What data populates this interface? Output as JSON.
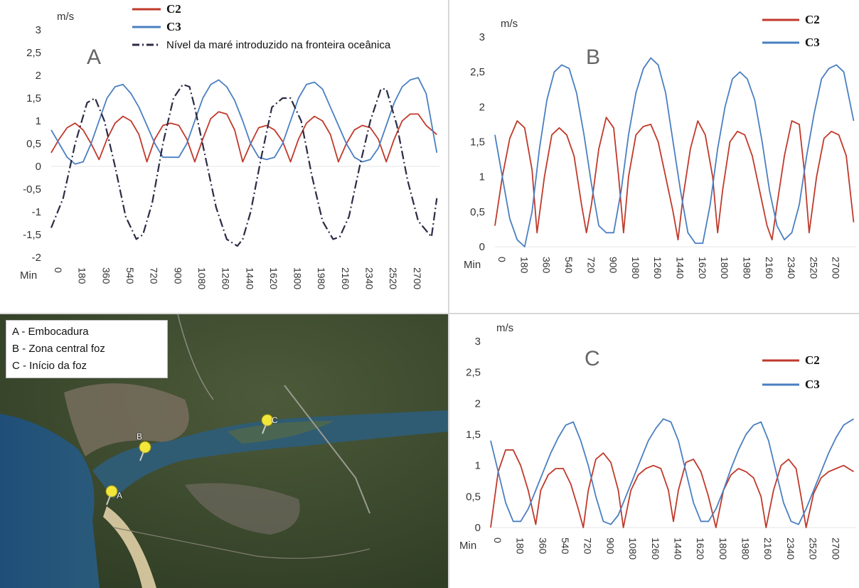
{
  "chart_data": [
    {
      "panel": "A",
      "type": "line",
      "unit_label": "m/s",
      "x_axis_label": "Min",
      "ylim": [
        -2,
        3
      ],
      "yticks": [
        "3",
        "2,5",
        "2",
        "1,5",
        "1",
        "0,5",
        "0",
        "-0,5",
        "-1",
        "-1,5",
        "-2"
      ],
      "xticks": [
        "0",
        "180",
        "360",
        "540",
        "720",
        "900",
        "1080",
        "1260",
        "1440",
        "1620",
        "1800",
        "1980",
        "2160",
        "2340",
        "2520",
        "2700"
      ],
      "xmax": 2920,
      "legend": [
        {
          "name": "C2",
          "color": "#c0392b"
        },
        {
          "name": "C3",
          "color": "#4a7fc1"
        },
        {
          "name": "Nível da maré introduzido na fronteira oceânica",
          "color": "#2b2b45"
        }
      ],
      "series": [
        {
          "name": "C2",
          "x": [
            0,
            60,
            120,
            180,
            240,
            300,
            360,
            420,
            480,
            540,
            600,
            660,
            720,
            780,
            840,
            900,
            960,
            1020,
            1080,
            1140,
            1200,
            1260,
            1320,
            1380,
            1440,
            1500,
            1560,
            1620,
            1680,
            1740,
            1800,
            1860,
            1920,
            1980,
            2040,
            2100,
            2160,
            2220,
            2280,
            2340,
            2400,
            2460,
            2520,
            2580,
            2640,
            2700,
            2760,
            2820,
            2900
          ],
          "y": [
            0.3,
            0.6,
            0.85,
            0.95,
            0.8,
            0.5,
            0.15,
            0.6,
            0.95,
            1.1,
            1.0,
            0.7,
            0.1,
            0.6,
            0.9,
            0.95,
            0.9,
            0.6,
            0.1,
            0.6,
            1.05,
            1.2,
            1.15,
            0.8,
            0.1,
            0.5,
            0.85,
            0.9,
            0.8,
            0.55,
            0.1,
            0.6,
            0.95,
            1.1,
            1.0,
            0.7,
            0.1,
            0.5,
            0.8,
            0.9,
            0.85,
            0.6,
            0.1,
            0.6,
            1.0,
            1.15,
            1.15,
            0.9,
            0.7
          ]
        },
        {
          "name": "C3",
          "x": [
            0,
            60,
            120,
            180,
            240,
            300,
            360,
            420,
            480,
            540,
            600,
            660,
            720,
            780,
            840,
            900,
            960,
            1020,
            1080,
            1140,
            1200,
            1260,
            1320,
            1380,
            1440,
            1500,
            1560,
            1620,
            1680,
            1740,
            1800,
            1860,
            1920,
            1980,
            2040,
            2100,
            2160,
            2220,
            2280,
            2340,
            2400,
            2460,
            2520,
            2580,
            2640,
            2700,
            2760,
            2820,
            2900
          ],
          "y": [
            0.8,
            0.5,
            0.2,
            0.05,
            0.1,
            0.5,
            1.0,
            1.5,
            1.75,
            1.8,
            1.6,
            1.3,
            0.9,
            0.5,
            0.2,
            0.2,
            0.2,
            0.5,
            1.0,
            1.5,
            1.8,
            1.9,
            1.75,
            1.45,
            1.0,
            0.5,
            0.2,
            0.15,
            0.2,
            0.5,
            1.0,
            1.5,
            1.8,
            1.85,
            1.7,
            1.3,
            0.9,
            0.5,
            0.2,
            0.1,
            0.15,
            0.4,
            0.9,
            1.4,
            1.75,
            1.9,
            1.95,
            1.6,
            0.3
          ]
        },
        {
          "name": "Nível da maré introduzido na fronteira oceânica",
          "dash": true,
          "x": [
            0,
            90,
            180,
            270,
            330,
            400,
            480,
            560,
            640,
            690,
            760,
            840,
            920,
            990,
            1040,
            1080,
            1160,
            1240,
            1320,
            1400,
            1440,
            1500,
            1580,
            1660,
            1740,
            1800,
            1880,
            1960,
            2040,
            2120,
            2170,
            2240,
            2320,
            2400,
            2480,
            2520,
            2600,
            2680,
            2760,
            2860,
            2900
          ],
          "y": [
            -1.35,
            -0.7,
            0.5,
            1.4,
            1.5,
            1.0,
            0.0,
            -1.1,
            -1.6,
            -1.5,
            -0.8,
            0.5,
            1.5,
            1.8,
            1.75,
            1.3,
            0.2,
            -0.9,
            -1.6,
            -1.75,
            -1.6,
            -1.0,
            0.2,
            1.3,
            1.5,
            1.5,
            1.0,
            -0.2,
            -1.2,
            -1.6,
            -1.55,
            -1.1,
            0.0,
            1.0,
            1.7,
            1.7,
            0.9,
            -0.3,
            -1.2,
            -1.55,
            -0.7
          ]
        }
      ]
    },
    {
      "panel": "B",
      "type": "line",
      "unit_label": "m/s",
      "x_axis_label": "Min",
      "ylim": [
        0,
        3
      ],
      "yticks": [
        "3",
        "2,5",
        "2",
        "1,5",
        "1",
        "0,5",
        "0"
      ],
      "xticks": [
        "0",
        "180",
        "360",
        "540",
        "720",
        "900",
        "1080",
        "1260",
        "1440",
        "1620",
        "1800",
        "1980",
        "2160",
        "2340",
        "2520",
        "2700"
      ],
      "xmax": 2920,
      "legend": [
        {
          "name": "C2",
          "color": "#c0392b"
        },
        {
          "name": "C3",
          "color": "#4a7fc1"
        }
      ],
      "series": [
        {
          "name": "C2",
          "x": [
            0,
            60,
            120,
            180,
            240,
            300,
            340,
            400,
            460,
            520,
            580,
            640,
            700,
            740,
            780,
            840,
            900,
            960,
            1000,
            1040,
            1080,
            1140,
            1200,
            1260,
            1320,
            1380,
            1440,
            1480,
            1520,
            1580,
            1640,
            1700,
            1760,
            1800,
            1840,
            1900,
            1960,
            2020,
            2080,
            2140,
            2200,
            2240,
            2280,
            2340,
            2400,
            2460,
            2500,
            2540,
            2600,
            2660,
            2720,
            2780,
            2840,
            2900
          ],
          "y": [
            0.3,
            1.0,
            1.55,
            1.8,
            1.7,
            1.1,
            0.2,
            1.0,
            1.6,
            1.7,
            1.6,
            1.3,
            0.6,
            0.2,
            0.6,
            1.4,
            1.85,
            1.7,
            1.0,
            0.2,
            1.0,
            1.6,
            1.72,
            1.75,
            1.5,
            1.0,
            0.5,
            0.1,
            0.7,
            1.4,
            1.8,
            1.6,
            1.0,
            0.2,
            0.8,
            1.5,
            1.65,
            1.6,
            1.3,
            0.8,
            0.3,
            0.1,
            0.6,
            1.3,
            1.8,
            1.75,
            1.1,
            0.2,
            1.0,
            1.55,
            1.65,
            1.6,
            1.3,
            0.35
          ]
        },
        {
          "name": "C3",
          "x": [
            0,
            60,
            120,
            180,
            240,
            300,
            360,
            420,
            480,
            540,
            600,
            660,
            720,
            780,
            840,
            900,
            960,
            1020,
            1080,
            1140,
            1200,
            1260,
            1320,
            1380,
            1440,
            1500,
            1560,
            1620,
            1680,
            1740,
            1800,
            1860,
            1920,
            1980,
            2040,
            2100,
            2160,
            2220,
            2280,
            2340,
            2400,
            2460,
            2520,
            2580,
            2640,
            2700,
            2760,
            2820,
            2900
          ],
          "y": [
            1.6,
            1.0,
            0.4,
            0.1,
            0.0,
            0.5,
            1.4,
            2.1,
            2.5,
            2.6,
            2.55,
            2.2,
            1.6,
            0.9,
            0.3,
            0.2,
            0.2,
            0.8,
            1.6,
            2.2,
            2.55,
            2.7,
            2.6,
            2.2,
            1.5,
            0.8,
            0.2,
            0.05,
            0.05,
            0.6,
            1.4,
            2.0,
            2.4,
            2.5,
            2.4,
            2.1,
            1.5,
            0.8,
            0.3,
            0.1,
            0.2,
            0.6,
            1.3,
            1.9,
            2.4,
            2.55,
            2.6,
            2.5,
            1.8
          ]
        }
      ]
    },
    {
      "panel": "C",
      "type": "line",
      "unit_label": "m/s",
      "x_axis_label": "Min",
      "ylim": [
        0,
        3
      ],
      "yticks": [
        "3",
        "2,5",
        "2",
        "1,5",
        "1",
        "0,5",
        "0"
      ],
      "xticks": [
        "0",
        "180",
        "360",
        "540",
        "720",
        "900",
        "1080",
        "1260",
        "1440",
        "1620",
        "1800",
        "1980",
        "2160",
        "2340",
        "2520",
        "2700"
      ],
      "xmax": 2920,
      "legend": [
        {
          "name": "C2",
          "color": "#c0392b"
        },
        {
          "name": "C3",
          "color": "#4a7fc1"
        }
      ],
      "series": [
        {
          "name": "C2",
          "x": [
            0,
            60,
            120,
            180,
            240,
            300,
            360,
            400,
            460,
            520,
            580,
            640,
            700,
            740,
            780,
            840,
            900,
            960,
            1020,
            1060,
            1120,
            1180,
            1240,
            1300,
            1360,
            1420,
            1460,
            1500,
            1560,
            1620,
            1680,
            1740,
            1800,
            1860,
            1920,
            1980,
            2040,
            2100,
            2160,
            2200,
            2260,
            2320,
            2380,
            2440,
            2480,
            2520,
            2580,
            2640,
            2700,
            2760,
            2820,
            2900
          ],
          "y": [
            0.0,
            0.9,
            1.25,
            1.25,
            1.0,
            0.6,
            0.05,
            0.6,
            0.85,
            0.95,
            0.95,
            0.7,
            0.3,
            0.0,
            0.6,
            1.1,
            1.2,
            1.05,
            0.6,
            0.0,
            0.6,
            0.85,
            0.95,
            1.0,
            0.95,
            0.6,
            0.1,
            0.6,
            1.05,
            1.1,
            0.9,
            0.5,
            0.0,
            0.6,
            0.85,
            0.95,
            0.9,
            0.8,
            0.5,
            0.0,
            0.6,
            1.0,
            1.1,
            0.95,
            0.5,
            0.0,
            0.55,
            0.8,
            0.9,
            0.95,
            1.0,
            0.9
          ]
        },
        {
          "name": "C3",
          "x": [
            0,
            60,
            120,
            180,
            240,
            300,
            360,
            420,
            480,
            540,
            600,
            660,
            720,
            780,
            840,
            900,
            960,
            1020,
            1080,
            1140,
            1200,
            1260,
            1320,
            1380,
            1440,
            1500,
            1560,
            1620,
            1680,
            1740,
            1800,
            1860,
            1920,
            1980,
            2040,
            2100,
            2160,
            2220,
            2280,
            2340,
            2400,
            2460,
            2520,
            2580,
            2640,
            2700,
            2760,
            2820,
            2900
          ],
          "y": [
            1.4,
            0.9,
            0.4,
            0.1,
            0.1,
            0.3,
            0.6,
            0.9,
            1.2,
            1.45,
            1.65,
            1.7,
            1.4,
            1.0,
            0.5,
            0.1,
            0.05,
            0.2,
            0.5,
            0.8,
            1.1,
            1.4,
            1.6,
            1.75,
            1.7,
            1.4,
            0.9,
            0.4,
            0.1,
            0.1,
            0.3,
            0.6,
            0.95,
            1.25,
            1.5,
            1.65,
            1.7,
            1.4,
            0.9,
            0.4,
            0.1,
            0.05,
            0.3,
            0.6,
            0.9,
            1.2,
            1.45,
            1.65,
            1.75
          ]
        }
      ]
    }
  ],
  "map": {
    "legend": [
      "A - Embocadura",
      "B - Zona central foz",
      "C - Início da foz"
    ],
    "markers": [
      "A",
      "B",
      "C"
    ]
  }
}
